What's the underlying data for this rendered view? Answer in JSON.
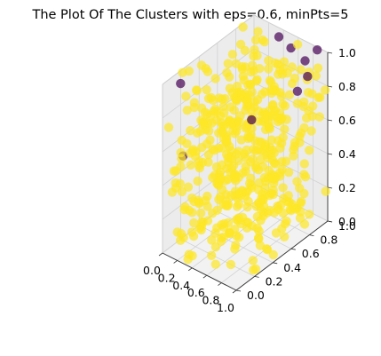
{
  "chart_data": {
    "type": "scatter",
    "projection": "3d",
    "title": "The Plot Of The Clusters with eps=0.6, minPts=5",
    "xlabel": "",
    "ylabel": "",
    "zlabel": "",
    "xlim": [
      0.0,
      1.0
    ],
    "ylim": [
      0.0,
      1.0
    ],
    "zlim": [
      0.0,
      1.0
    ],
    "x_ticks": [
      "0.0",
      "0.2",
      "0.4",
      "0.6",
      "0.8",
      "1.0"
    ],
    "y_ticks": [
      "0.0",
      "0.2",
      "0.4",
      "0.6",
      "0.8",
      "1.0"
    ],
    "z_ticks": [
      "0.0",
      "0.2",
      "0.4",
      "0.6",
      "0.8",
      "1.0"
    ],
    "grid": true,
    "legend": "none",
    "colormap": "viridis",
    "marker_alpha": 0.7,
    "series": [
      {
        "color": "#fde725",
        "point_count": 500,
        "distribution": "uniform",
        "x_range": [
          0.0,
          1.0
        ],
        "y_range": [
          0.0,
          1.0
        ],
        "z_range": [
          0.0,
          1.0
        ]
      },
      {
        "color": "#440154",
        "points": [
          {
            "x": 0.12,
            "y": 0.1,
            "z": 0.99
          },
          {
            "x": 0.4,
            "y": 0.95,
            "z": 0.98
          },
          {
            "x": 0.6,
            "y": 0.92,
            "z": 0.97
          },
          {
            "x": 0.78,
            "y": 0.93,
            "z": 0.93
          },
          {
            "x": 0.87,
            "y": 0.99,
            "z": 0.99
          },
          {
            "x": 0.95,
            "y": 0.82,
            "z": 0.92
          },
          {
            "x": 0.96,
            "y": 0.2,
            "z": 0.92
          },
          {
            "x": 0.9,
            "y": 0.75,
            "z": 0.85
          },
          {
            "x": 0.03,
            "y": 0.2,
            "z": 0.5
          }
        ]
      }
    ]
  }
}
